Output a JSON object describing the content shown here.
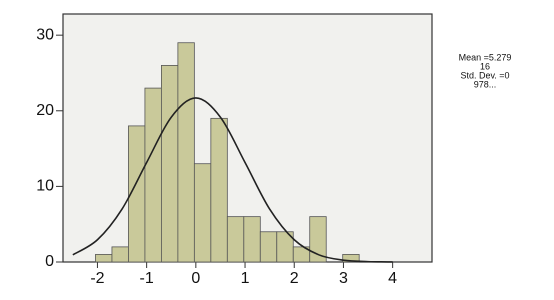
{
  "chart_data": {
    "type": "histogram",
    "bins": [
      -2.04,
      -1.705,
      -1.37,
      -1.035,
      -0.7,
      -0.365,
      -0.03,
      0.305,
      0.64,
      0.975,
      1.31,
      1.645,
      1.98,
      2.315,
      2.65,
      2.985,
      3.32
    ],
    "values": [
      1,
      2,
      18,
      23,
      26,
      29,
      13,
      19,
      6,
      6,
      4,
      4,
      2,
      6,
      0,
      1
    ],
    "color": "#c9c99a",
    "curve": {
      "x": [
        -2.5,
        -2,
        -1.5,
        -1,
        -0.5,
        0,
        0.5,
        1,
        1.5,
        2,
        2.5,
        3,
        3.5,
        4
      ],
      "values": [
        0.95,
        2.94,
        7.0,
        13.16,
        19.15,
        21.7,
        19.15,
        13.16,
        7.0,
        2.94,
        0.95,
        0.24,
        0.05,
        0.01
      ],
      "color": "#222222"
    },
    "xlim": [
      -2.7,
      4.8
    ],
    "ylim": [
      0,
      32.8
    ],
    "xticks": [
      -2,
      -1,
      0,
      1,
      2,
      3,
      4
    ],
    "yticks": [
      0,
      10,
      20,
      30
    ],
    "stats_text": [
      "Mean =5.279",
      "16",
      "Std. Dev. =0",
      "978..."
    ]
  }
}
